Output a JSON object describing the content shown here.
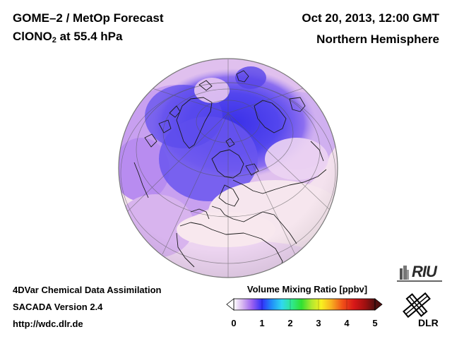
{
  "header": {
    "title": "GOME–2 / MetOp Forecast",
    "species": "ClONO",
    "species_subscript": "2",
    "level": "at 55.4 hPa",
    "date": "Oct 20, 2013, 12:00 GMT",
    "region": "Northern Hemisphere"
  },
  "footer": {
    "line1": "4DVar Chemical Data Assimilation",
    "line2": "SACADA Version 2.4",
    "line3": "http://wdc.dlr.de"
  },
  "colorbar": {
    "title": "Volume Mixing Ratio [ppbv]",
    "ticks": [
      "0",
      "1",
      "2",
      "3",
      "4",
      "5"
    ],
    "min": 0,
    "max": 5,
    "colors": [
      "#ffffff",
      "#d8b8f0",
      "#9a60f0",
      "#3030f8",
      "#2090f8",
      "#30d8f0",
      "#30e890",
      "#30e030",
      "#b0e830",
      "#f8f020",
      "#f8b020",
      "#f05018",
      "#d81818",
      "#a01010",
      "#501010"
    ]
  },
  "logos": {
    "riu": "RIU",
    "dlr": "DLR"
  },
  "map_colors": {
    "ocean_background": "#f0dcea",
    "vortex": "#5a4cf0",
    "vortex_core": "#4538e8",
    "mid_lat": "#c8a4ee",
    "low_lat": "#f6e4ee"
  }
}
